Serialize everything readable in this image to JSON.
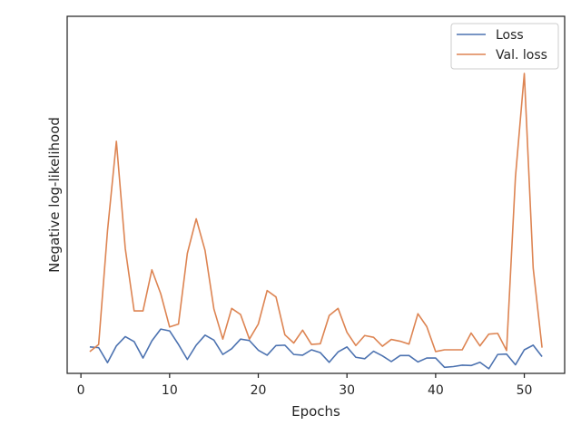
{
  "chart_data": {
    "type": "line",
    "xlabel": "Epochs",
    "ylabel": "Negative log-likelihood",
    "xlim": [
      -1.55,
      54.55
    ],
    "ylim": [
      0,
      1.0
    ],
    "xticks": [
      0,
      10,
      20,
      30,
      40,
      50
    ],
    "yticks_shown": false,
    "grid": false,
    "legend_position": "top-right",
    "x": [
      1,
      2,
      3,
      4,
      5,
      6,
      7,
      8,
      9,
      10,
      11,
      12,
      13,
      14,
      15,
      16,
      17,
      18,
      19,
      20,
      21,
      22,
      23,
      24,
      25,
      26,
      27,
      28,
      29,
      30,
      31,
      32,
      33,
      34,
      35,
      36,
      37,
      38,
      39,
      40,
      41,
      42,
      43,
      44,
      45,
      46,
      47,
      48,
      49,
      50,
      51,
      52
    ],
    "series": [
      {
        "name": "Loss",
        "color": "#4c72b0",
        "values": [
          0.074,
          0.072,
          0.03,
          0.077,
          0.103,
          0.089,
          0.043,
          0.091,
          0.124,
          0.119,
          0.081,
          0.039,
          0.079,
          0.107,
          0.093,
          0.053,
          0.069,
          0.096,
          0.092,
          0.065,
          0.051,
          0.078,
          0.079,
          0.053,
          0.051,
          0.066,
          0.058,
          0.031,
          0.06,
          0.074,
          0.045,
          0.041,
          0.062,
          0.049,
          0.033,
          0.05,
          0.05,
          0.032,
          0.043,
          0.043,
          0.017,
          0.019,
          0.023,
          0.022,
          0.031,
          0.013,
          0.053,
          0.054,
          0.024,
          0.066,
          0.079,
          0.047
        ]
      },
      {
        "name": "Val. loss",
        "color": "#dd8452",
        "values": [
          0.061,
          0.081,
          0.4,
          0.65,
          0.35,
          0.175,
          0.175,
          0.29,
          0.223,
          0.13,
          0.138,
          0.336,
          0.433,
          0.344,
          0.18,
          0.096,
          0.182,
          0.165,
          0.096,
          0.138,
          0.232,
          0.214,
          0.108,
          0.085,
          0.121,
          0.081,
          0.083,
          0.162,
          0.182,
          0.115,
          0.078,
          0.106,
          0.101,
          0.076,
          0.095,
          0.09,
          0.082,
          0.167,
          0.131,
          0.061,
          0.066,
          0.066,
          0.066,
          0.113,
          0.077,
          0.11,
          0.112,
          0.064,
          0.55,
          0.84,
          0.295,
          0.072
        ]
      }
    ]
  }
}
